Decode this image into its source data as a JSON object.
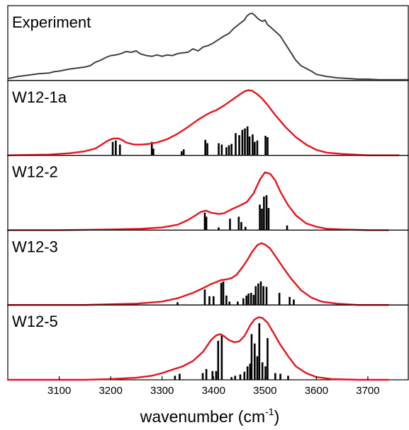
{
  "chart_data": {
    "type": "line",
    "xlabel": "wavenumber (cm",
    "xlabel_sup": "-1",
    "xlabel_close": ")",
    "xlim": [
      3000,
      3780
    ],
    "xticks": [
      3100,
      3200,
      3300,
      3400,
      3500,
      3600,
      3700
    ],
    "colors": {
      "experiment": "#404040",
      "simulated": "#e8141c",
      "sticks": "#000000"
    },
    "panels": [
      {
        "label": "Experiment",
        "kind": "experiment",
        "ylim": [
          0,
          1.05
        ],
        "series": [
          {
            "x": [
              3002,
              3020,
              3040,
              3060,
              3080,
              3090,
              3100,
              3120,
              3140,
              3150,
              3160,
              3170,
              3180,
              3190,
              3200,
              3210,
              3220,
              3230,
              3240,
              3250,
              3255,
              3260,
              3270,
              3280,
              3290,
              3300,
              3310,
              3320,
              3330,
              3340,
              3350,
              3360,
              3370,
              3380,
              3390,
              3400,
              3410,
              3420,
              3430,
              3440,
              3450,
              3460,
              3465,
              3470,
              3475,
              3480,
              3485,
              3490,
              3495,
              3500,
              3505,
              3510,
              3520,
              3530,
              3540,
              3550,
              3560,
              3570,
              3580,
              3590,
              3600,
              3620,
              3640,
              3660,
              3680,
              3700,
              3720,
              3740,
              3760,
              3780
            ],
            "y": [
              0.03,
              0.06,
              0.08,
              0.1,
              0.11,
              0.13,
              0.14,
              0.17,
              0.19,
              0.2,
              0.22,
              0.27,
              0.3,
              0.34,
              0.37,
              0.38,
              0.4,
              0.43,
              0.42,
              0.44,
              0.41,
              0.39,
              0.37,
              0.36,
              0.38,
              0.36,
              0.38,
              0.37,
              0.4,
              0.41,
              0.42,
              0.47,
              0.44,
              0.5,
              0.52,
              0.56,
              0.61,
              0.66,
              0.7,
              0.78,
              0.84,
              0.9,
              0.96,
              0.99,
              1.0,
              0.97,
              0.93,
              0.9,
              0.88,
              0.9,
              0.83,
              0.8,
              0.73,
              0.66,
              0.54,
              0.42,
              0.3,
              0.22,
              0.18,
              0.14,
              0.09,
              0.06,
              0.04,
              0.03,
              0.02,
              0.02,
              0.01,
              0.01,
              0.01,
              0.01
            ]
          }
        ],
        "sticks": []
      },
      {
        "label": "W12-1a",
        "kind": "simulated",
        "ylim": [
          0,
          1.05
        ],
        "series": [
          {
            "x": [
              3000,
              3080,
              3120,
              3150,
              3170,
              3185,
              3195,
              3205,
              3215,
              3222,
              3230,
              3245,
              3260,
              3275,
              3290,
              3310,
              3330,
              3350,
              3370,
              3385,
              3395,
              3405,
              3420,
              3435,
              3450,
              3460,
              3468,
              3475,
              3485,
              3495,
              3505,
              3520,
              3540,
              3560,
              3580,
              3600,
              3620,
              3650,
              3700,
              3760
            ],
            "y": [
              0.0,
              0.01,
              0.03,
              0.06,
              0.1,
              0.17,
              0.22,
              0.25,
              0.25,
              0.23,
              0.19,
              0.16,
              0.16,
              0.17,
              0.19,
              0.24,
              0.32,
              0.42,
              0.53,
              0.6,
              0.64,
              0.67,
              0.74,
              0.82,
              0.9,
              0.95,
              0.97,
              0.96,
              0.91,
              0.84,
              0.75,
              0.6,
              0.42,
              0.27,
              0.16,
              0.08,
              0.04,
              0.02,
              0.0,
              0.0
            ]
          }
        ],
        "sticks": [
          [
            3204,
            0.2
          ],
          [
            3210,
            0.22
          ],
          [
            3218,
            0.16
          ],
          [
            3280,
            0.2
          ],
          [
            3283,
            0.1
          ],
          [
            3338,
            0.06
          ],
          [
            3342,
            0.09
          ],
          [
            3384,
            0.23
          ],
          [
            3388,
            0.18
          ],
          [
            3410,
            0.18
          ],
          [
            3416,
            0.16
          ],
          [
            3425,
            0.12
          ],
          [
            3430,
            0.15
          ],
          [
            3435,
            0.17
          ],
          [
            3443,
            0.33
          ],
          [
            3450,
            0.3
          ],
          [
            3456,
            0.38
          ],
          [
            3461,
            0.4
          ],
          [
            3466,
            0.43
          ],
          [
            3470,
            0.28
          ],
          [
            3476,
            0.31
          ],
          [
            3480,
            0.2
          ],
          [
            3485,
            0.22
          ],
          [
            3501,
            0.29
          ],
          [
            3505,
            0.27
          ]
        ]
      },
      {
        "label": "W12-2",
        "kind": "simulated",
        "ylim": [
          0,
          1.05
        ],
        "series": [
          {
            "x": [
              3000,
              3100,
              3200,
              3260,
              3300,
              3330,
              3350,
              3365,
              3375,
              3385,
              3395,
              3410,
              3420,
              3435,
              3450,
              3465,
              3478,
              3490,
              3500,
              3510,
              3520,
              3530,
              3545,
              3560,
              3580,
              3600,
              3620,
              3650,
              3700,
              3740
            ],
            "y": [
              0.0,
              0.0,
              0.01,
              0.02,
              0.04,
              0.08,
              0.15,
              0.22,
              0.27,
              0.29,
              0.26,
              0.24,
              0.25,
              0.31,
              0.36,
              0.42,
              0.55,
              0.75,
              0.86,
              0.84,
              0.74,
              0.57,
              0.37,
              0.22,
              0.1,
              0.05,
              0.02,
              0.01,
              0.0,
              0.0
            ]
          }
        ],
        "sticks": [
          [
            3383,
            0.26
          ],
          [
            3386,
            0.2
          ],
          [
            3410,
            0.04
          ],
          [
            3432,
            0.17
          ],
          [
            3449,
            0.2
          ],
          [
            3454,
            0.12
          ],
          [
            3462,
            0.05
          ],
          [
            3490,
            0.38
          ],
          [
            3494,
            0.32
          ],
          [
            3498,
            0.5
          ],
          [
            3503,
            0.52
          ],
          [
            3507,
            0.33
          ],
          [
            3543,
            0.07
          ]
        ]
      },
      {
        "label": "W12-3",
        "kind": "simulated",
        "ylim": [
          0,
          1.05
        ],
        "series": [
          {
            "x": [
              3000,
              3150,
              3200,
              3250,
              3300,
              3330,
              3360,
              3380,
              3395,
              3405,
              3415,
              3425,
              3435,
              3445,
              3455,
              3465,
              3475,
              3485,
              3493,
              3500,
              3510,
              3520,
              3535,
              3550,
              3570,
              3590,
              3610,
              3640,
              3680,
              3740
            ],
            "y": [
              0.0,
              0.0,
              0.01,
              0.02,
              0.05,
              0.1,
              0.18,
              0.25,
              0.31,
              0.34,
              0.37,
              0.38,
              0.4,
              0.45,
              0.55,
              0.66,
              0.79,
              0.89,
              0.92,
              0.9,
              0.84,
              0.73,
              0.56,
              0.4,
              0.22,
              0.11,
              0.05,
              0.02,
              0.0,
              0.0
            ]
          }
        ],
        "sticks": [
          [
            3330,
            0.04
          ],
          [
            3383,
            0.23
          ],
          [
            3392,
            0.13
          ],
          [
            3400,
            0.13
          ],
          [
            3415,
            0.33
          ],
          [
            3419,
            0.35
          ],
          [
            3425,
            0.14
          ],
          [
            3431,
            0.05
          ],
          [
            3447,
            0.05
          ],
          [
            3458,
            0.1
          ],
          [
            3464,
            0.14
          ],
          [
            3468,
            0.17
          ],
          [
            3473,
            0.18
          ],
          [
            3478,
            0.15
          ],
          [
            3482,
            0.28
          ],
          [
            3487,
            0.32
          ],
          [
            3492,
            0.35
          ],
          [
            3497,
            0.28
          ],
          [
            3503,
            0.27
          ],
          [
            3528,
            0.18
          ],
          [
            3548,
            0.12
          ],
          [
            3556,
            0.08
          ]
        ]
      },
      {
        "label": "W12-5",
        "kind": "simulated",
        "ylim": [
          0,
          1.05
        ],
        "series": [
          {
            "x": [
              3000,
              3150,
              3200,
              3250,
              3280,
              3300,
              3320,
              3340,
              3360,
              3380,
              3395,
              3405,
              3413,
              3420,
              3430,
              3440,
              3450,
              3460,
              3472,
              3480,
              3488,
              3495,
              3505,
              3515,
              3530,
              3545,
              3560,
              3580,
              3600,
              3630,
              3680,
              3740
            ],
            "y": [
              0.0,
              0.0,
              0.01,
              0.03,
              0.06,
              0.1,
              0.15,
              0.2,
              0.28,
              0.42,
              0.59,
              0.66,
              0.68,
              0.65,
              0.59,
              0.56,
              0.57,
              0.65,
              0.82,
              0.9,
              0.93,
              0.92,
              0.85,
              0.72,
              0.52,
              0.35,
              0.2,
              0.1,
              0.04,
              0.01,
              0.0,
              0.0
            ]
          }
        ],
        "sticks": [
          [
            3325,
            0.06
          ],
          [
            3334,
            0.09
          ],
          [
            3379,
            0.1
          ],
          [
            3386,
            0.16
          ],
          [
            3398,
            0.13
          ],
          [
            3405,
            0.13
          ],
          [
            3409,
            0.58
          ],
          [
            3416,
            0.66
          ],
          [
            3435,
            0.04
          ],
          [
            3442,
            0.06
          ],
          [
            3452,
            0.08
          ],
          [
            3460,
            0.12
          ],
          [
            3466,
            0.2
          ],
          [
            3471,
            0.24
          ],
          [
            3474,
            0.68
          ],
          [
            3480,
            0.54
          ],
          [
            3485,
            0.35
          ],
          [
            3489,
            0.84
          ],
          [
            3495,
            0.26
          ],
          [
            3501,
            0.2
          ],
          [
            3505,
            0.62
          ],
          [
            3520,
            0.1
          ],
          [
            3530,
            0.09
          ],
          [
            3545,
            0.06
          ]
        ]
      }
    ]
  }
}
